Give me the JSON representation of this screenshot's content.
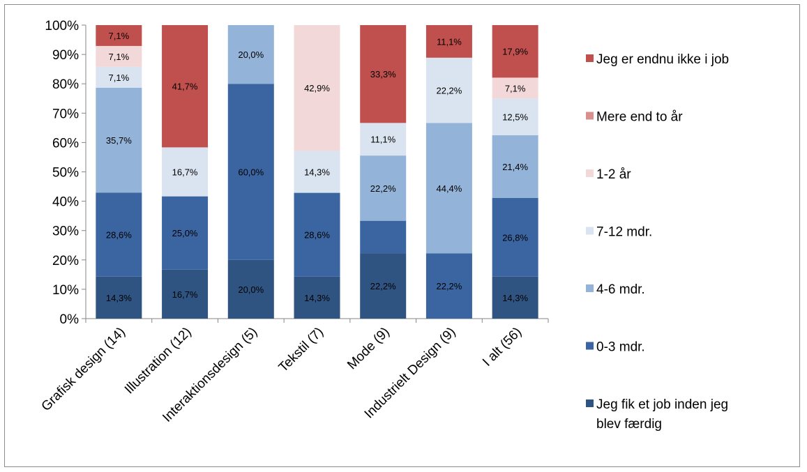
{
  "chart_data": {
    "type": "bar",
    "stacked": "percent",
    "title": "",
    "xlabel": "",
    "ylabel": "",
    "ylim": [
      0,
      100
    ],
    "yticks": [
      "0%",
      "10%",
      "20%",
      "30%",
      "40%",
      "50%",
      "60%",
      "70%",
      "80%",
      "90%",
      "100%"
    ],
    "grid": false,
    "legend_position": "right",
    "categories": [
      "Grafisk design (14)",
      "Illustration  (12)",
      "Interaktionsdesign (5)",
      "Tekstil (7)",
      "Mode (9)",
      "Industrielt Design (9)",
      "I alt (56)"
    ],
    "series": [
      {
        "name": "Jeg fik et job inden jeg blev færdig",
        "color": "#2f5482",
        "values": [
          14.3,
          16.7,
          20.0,
          14.3,
          22.2,
          0,
          14.3
        ],
        "labels": [
          "14,3%",
          "16,7%",
          "20,0%",
          "14,3%",
          "22,2%",
          "",
          "14,3%"
        ]
      },
      {
        "name": "0-3 mdr.",
        "color": "#3b65a0",
        "values": [
          28.6,
          25.0,
          60.0,
          28.6,
          11.1,
          22.2,
          26.8
        ],
        "labels": [
          "28,6%",
          "25,0%",
          "60,0%",
          "28,6%",
          "",
          "22,2%",
          "26,8%"
        ]
      },
      {
        "name": "4-6 mdr.",
        "color": "#94b3d8",
        "values": [
          35.7,
          0,
          20.0,
          0,
          22.2,
          44.4,
          21.4
        ],
        "labels": [
          "35,7%",
          "",
          "20,0%",
          "",
          "22,2%",
          "44,4%",
          "21,4%"
        ]
      },
      {
        "name": "7-12 mdr.",
        "color": "#dae3f0",
        "values": [
          7.1,
          16.7,
          0,
          14.3,
          11.1,
          22.2,
          12.5
        ],
        "labels": [
          "7,1%",
          "16,7%",
          "",
          "14,3%",
          "11,1%",
          "22,2%",
          "12,5%"
        ]
      },
      {
        "name": "1-2 år",
        "color": "#f2d8d8",
        "values": [
          7.1,
          0,
          0,
          42.9,
          0,
          0,
          7.1
        ],
        "labels": [
          "7,1%",
          "",
          "",
          "42,9%",
          "",
          "",
          "7,1%"
        ]
      },
      {
        "name": "Mere end to år",
        "color": "#d9908c",
        "values": [
          0,
          0,
          0,
          0,
          0,
          0,
          0
        ],
        "labels": [
          "",
          "",
          "",
          "",
          "",
          "",
          ""
        ]
      },
      {
        "name": "Jeg er endnu ikke i job",
        "color": "#c0504d",
        "values": [
          7.1,
          41.7,
          0,
          0,
          33.3,
          11.1,
          17.9
        ],
        "labels": [
          "7,1%",
          "41,7%",
          "",
          "",
          "33,3%",
          "11,1%",
          "17,9%"
        ]
      }
    ],
    "legend_order": [
      "Jeg er endnu ikke i job",
      "Mere end to år",
      "1-2 år",
      "7-12 mdr.",
      "4-6 mdr.",
      "0-3 mdr.",
      "Jeg fik et job inden jeg blev færdig"
    ]
  }
}
